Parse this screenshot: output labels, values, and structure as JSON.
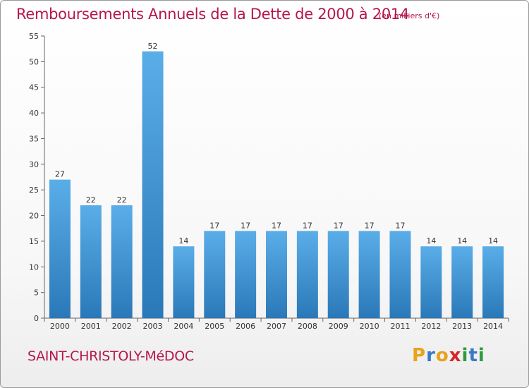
{
  "header": {
    "title": "Remboursements Annuels de la Dette de 2000 à 2014",
    "unit_note": "(en milliers d'€)"
  },
  "footer": {
    "commune": "SAINT-CHRISTOLY-MéDOC",
    "logo": {
      "letters": [
        "P",
        "r",
        "o",
        "x",
        "i",
        "t",
        "i"
      ],
      "colors": [
        "#e8a21c",
        "#3a78c8",
        "#e8a21c",
        "#d8232a",
        "#2e9a3c",
        "#3a78c8",
        "#2e9a3c"
      ]
    }
  },
  "chart_data": {
    "type": "bar",
    "title": "Remboursements Annuels de la Dette de 2000 à 2014",
    "categories": [
      "2000",
      "2001",
      "2002",
      "2003",
      "2004",
      "2005",
      "2006",
      "2007",
      "2008",
      "2009",
      "2010",
      "2011",
      "2012",
      "2013",
      "2014"
    ],
    "values": [
      27,
      22,
      22,
      52,
      14,
      17,
      17,
      17,
      17,
      17,
      17,
      17,
      14,
      14,
      14
    ],
    "ylim": [
      0,
      55
    ],
    "yticks": [
      0,
      5,
      10,
      15,
      20,
      25,
      30,
      35,
      40,
      45,
      50,
      55
    ],
    "grid": false,
    "colors": {
      "bar_light": "#5aaee8",
      "bar_dark": "#2a78b8",
      "axis": "#666666",
      "text": "#333333",
      "accent": "#b5174a"
    }
  }
}
